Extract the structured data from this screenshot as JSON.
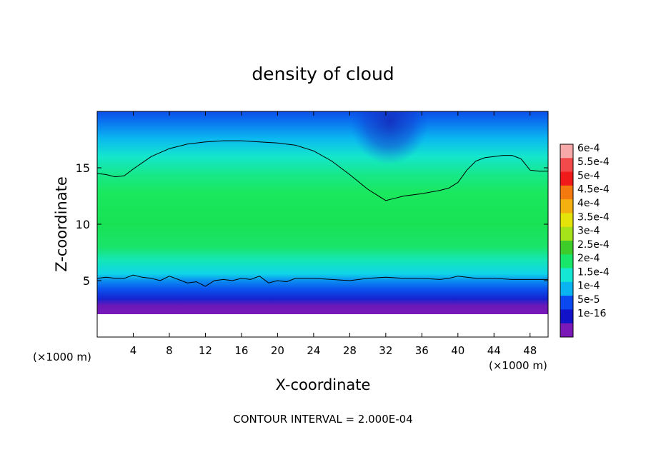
{
  "chart_data": {
    "type": "heatmap",
    "title": "density of cloud",
    "xlabel": "X-coordinate",
    "ylabel": "Z-coordinate",
    "x_unit": "(×1000 m)",
    "y_unit": "(×1000 m)",
    "xlim": [
      0,
      50
    ],
    "ylim": [
      0,
      20
    ],
    "x_ticks": [
      4,
      8,
      12,
      16,
      20,
      24,
      28,
      32,
      36,
      40,
      44,
      48
    ],
    "y_ticks": [
      5,
      10,
      15
    ],
    "footer": "CONTOUR INTERVAL = 2.000E-04",
    "colorbar": {
      "labels": [
        "6e-4",
        "5.5e-4",
        "5e-4",
        "4.5e-4",
        "4e-4",
        "3.5e-4",
        "3e-4",
        "2.5e-4",
        "2e-4",
        "1.5e-4",
        "1e-4",
        "5e-5",
        "1e-16"
      ],
      "colors": [
        "#f7a8a8",
        "#f24a4a",
        "#f01a1a",
        "#f47a10",
        "#f4b010",
        "#e4e40a",
        "#a6e21a",
        "#3ecc2a",
        "#18e66a",
        "#14e8d4",
        "#0ab4f0",
        "#0a48f0",
        "#1212c8",
        "#7a18b8"
      ]
    },
    "contour_level": "2.000E-04",
    "contours": [
      {
        "name": "upper",
        "x": [
          0,
          1,
          2,
          3,
          4,
          6,
          8,
          10,
          12,
          14,
          16,
          18,
          20,
          22,
          24,
          26,
          28,
          30,
          31,
          32,
          33,
          34,
          36,
          38,
          39,
          40,
          41,
          42,
          43,
          44,
          45,
          46,
          47,
          48,
          49,
          50
        ],
        "z": [
          14.5,
          14.4,
          14.2,
          14.3,
          14.9,
          16.0,
          16.7,
          17.1,
          17.3,
          17.4,
          17.4,
          17.3,
          17.2,
          17.0,
          16.5,
          15.6,
          14.4,
          13.1,
          12.6,
          12.1,
          12.3,
          12.5,
          12.7,
          13.0,
          13.2,
          13.7,
          14.8,
          15.6,
          15.9,
          16.0,
          16.1,
          16.1,
          15.8,
          14.8,
          14.7,
          14.7
        ]
      },
      {
        "name": "lower",
        "x": [
          0,
          1,
          2,
          3,
          4,
          5,
          6,
          7,
          8,
          9,
          10,
          11,
          12,
          13,
          14,
          15,
          16,
          17,
          18,
          19,
          20,
          21,
          22,
          24,
          26,
          28,
          30,
          32,
          34,
          36,
          38,
          39,
          40,
          42,
          44,
          46,
          48,
          50
        ],
        "z": [
          5.2,
          5.3,
          5.2,
          5.2,
          5.5,
          5.3,
          5.2,
          5.0,
          5.4,
          5.1,
          4.8,
          4.9,
          4.5,
          5.0,
          5.1,
          5.0,
          5.2,
          5.1,
          5.4,
          4.8,
          5.0,
          4.9,
          5.2,
          5.2,
          5.1,
          5.0,
          5.2,
          5.3,
          5.2,
          5.2,
          5.1,
          5.2,
          5.4,
          5.2,
          5.2,
          5.1,
          5.1,
          5.1
        ]
      }
    ]
  }
}
